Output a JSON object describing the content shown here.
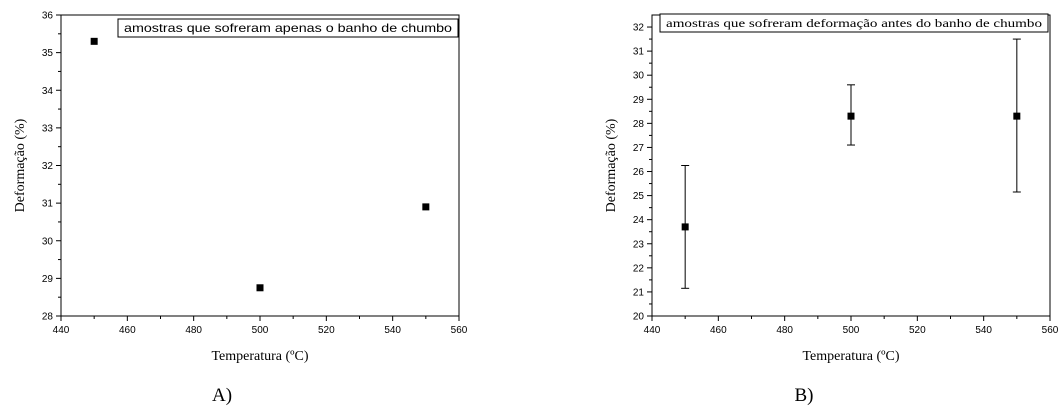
{
  "chart_data": [
    {
      "type": "scatter",
      "panel_label": "A)",
      "legend": "amostras que sofreram apenas o banho de chumbo",
      "xlabel": "Temperatura (ºC)",
      "ylabel": "Deformação (%)",
      "xlim": [
        440,
        560
      ],
      "ylim": [
        28,
        36
      ],
      "xticks": [
        "440",
        "460",
        "480",
        "500",
        "520",
        "540",
        "560"
      ],
      "yticks": [
        "28",
        "29",
        "30",
        "31",
        "32",
        "33",
        "34",
        "35",
        "36"
      ],
      "points": [
        {
          "x": 450,
          "y": 35.3
        },
        {
          "x": 500,
          "y": 28.75
        },
        {
          "x": 550,
          "y": 30.9
        }
      ]
    },
    {
      "type": "scatter",
      "panel_label": "B)",
      "legend": "amostras que sofreram deformação antes do banho de chumbo",
      "xlabel": "Temperatura (ºC)",
      "ylabel": "Deformação (%)",
      "xlim": [
        440,
        560
      ],
      "ylim": [
        20,
        32.5
      ],
      "xticks": [
        "440",
        "460",
        "480",
        "500",
        "520",
        "540",
        "560"
      ],
      "yticks": [
        "20",
        "21",
        "22",
        "23",
        "24",
        "25",
        "26",
        "27",
        "28",
        "29",
        "30",
        "31",
        "32"
      ],
      "points": [
        {
          "x": 450,
          "y": 23.7,
          "err_low": 21.15,
          "err_high": 26.25
        },
        {
          "x": 500,
          "y": 28.3,
          "err_low": 27.1,
          "err_high": 29.6
        },
        {
          "x": 550,
          "y": 28.3,
          "err_low": 25.15,
          "err_high": 31.5
        }
      ]
    }
  ]
}
